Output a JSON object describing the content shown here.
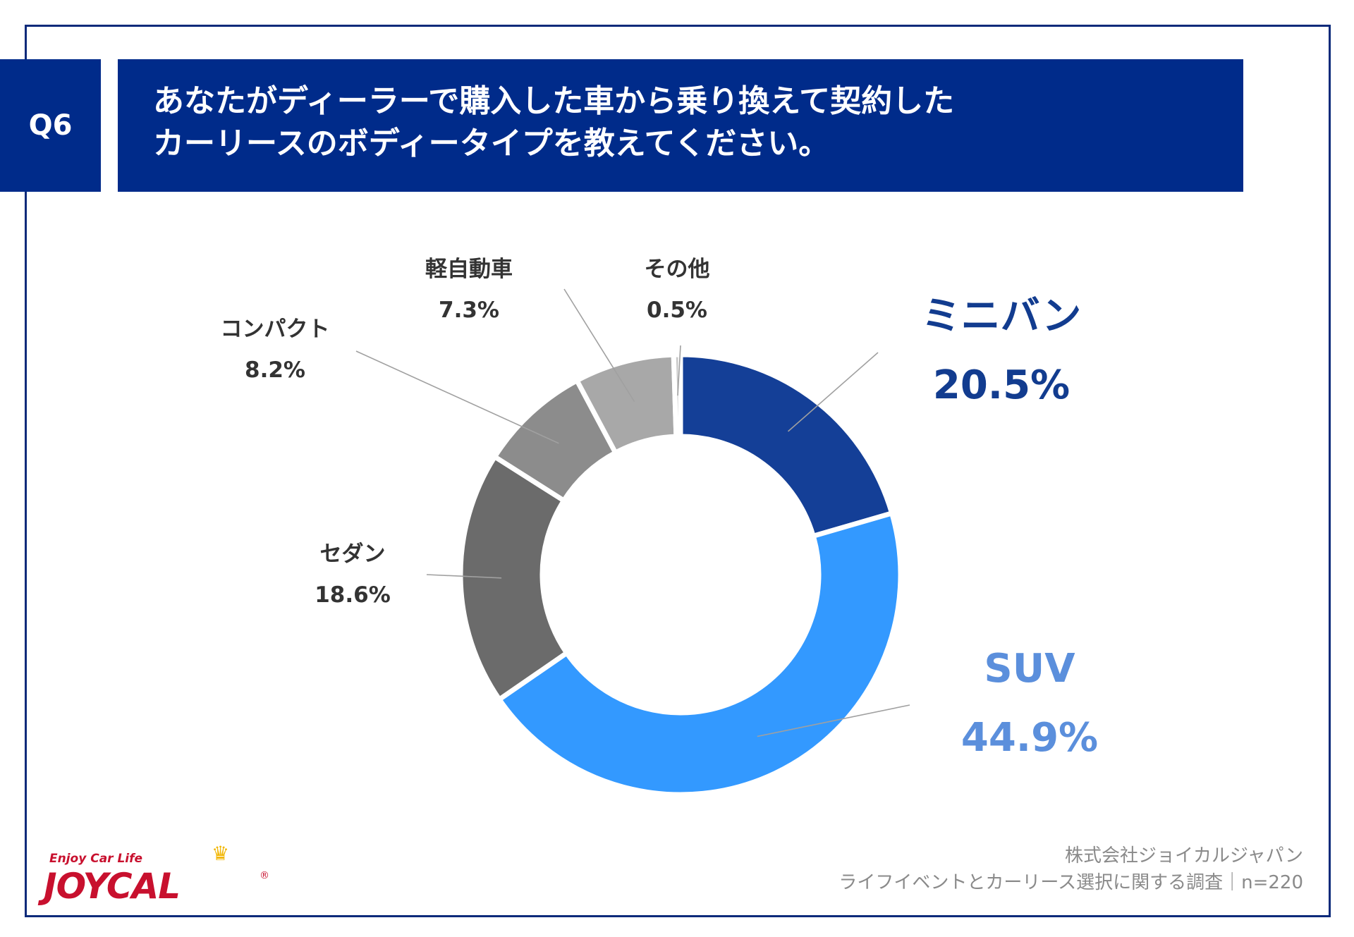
{
  "header": {
    "badge": "Q6",
    "title_line1": "あなたがディーラーで購入した車から乗り換えて契約した",
    "title_line2": "カーリースのボディータイプを教えてください。"
  },
  "chart_data": {
    "type": "pie",
    "donut": true,
    "categories": [
      "ミニバン",
      "SUV",
      "セダン",
      "コンパクト",
      "軽自動車",
      "その他"
    ],
    "values": [
      20.5,
      44.9,
      18.6,
      8.2,
      7.3,
      0.5
    ],
    "value_labels": [
      "20.5%",
      "44.9%",
      "18.6%",
      "8.2%",
      "7.3%",
      "0.5%"
    ],
    "colors": [
      "#143f97",
      "#3399ff",
      "#6b6b6b",
      "#8c8c8c",
      "#a8a8a8",
      "#c8c8c8"
    ],
    "title": "",
    "legend": "none"
  },
  "footer": {
    "source_line1": "株式会社ジョイカルジャパン",
    "source_line2": "ライフイベントとカーリース選択に関する調査｜n=220",
    "logo_tagline": "Enjoy Car Life",
    "logo_word": "JOYCAL",
    "logo_reg": "®"
  }
}
